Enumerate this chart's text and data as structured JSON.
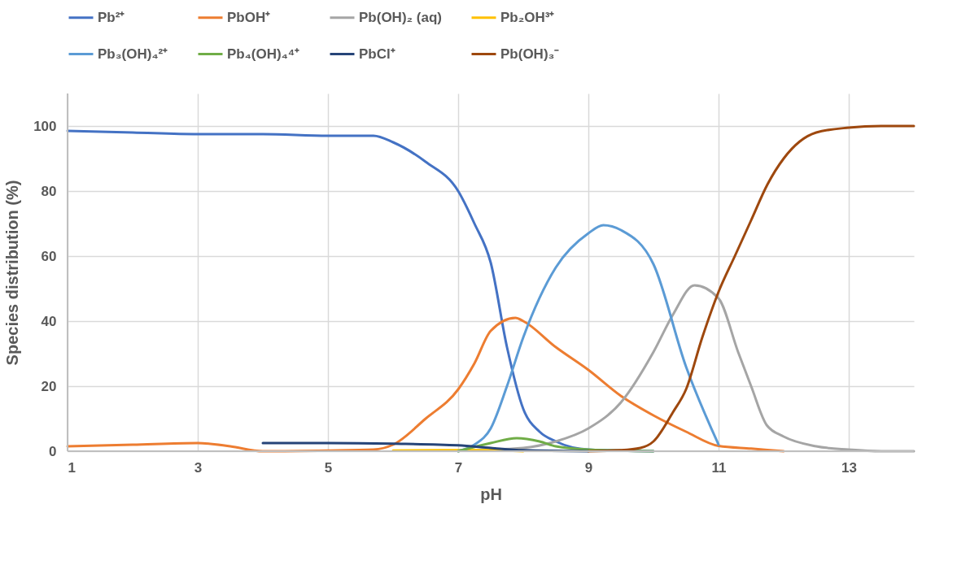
{
  "chart_data": {
    "type": "line",
    "xlabel": "pH",
    "ylabel": "Species distribution (%)",
    "xlim": [
      1,
      14
    ],
    "xticks": [
      1,
      3,
      5,
      7,
      9,
      11,
      13
    ],
    "ylim": [
      0,
      110
    ],
    "yticks": [
      0,
      20,
      40,
      60,
      80,
      100
    ],
    "grid": true,
    "legend": "top",
    "line_style": "solid",
    "marker": "none",
    "series": [
      {
        "name": "Pb²⁺",
        "color": "#4472c4",
        "x": [
          1,
          2,
          3,
          4,
          5,
          5.7,
          6,
          6.5,
          7,
          7.25,
          7.5,
          7.75,
          8,
          8.25,
          8.5,
          9,
          10
        ],
        "values": [
          98.5,
          98,
          97.5,
          97.5,
          97,
          97,
          95,
          89,
          80,
          70,
          58,
          32,
          13,
          6,
          3,
          0.5,
          0
        ]
      },
      {
        "name": "PbOH⁺",
        "color": "#ed7d31",
        "x": [
          1,
          2,
          3,
          3.5,
          4,
          5,
          5.7,
          6,
          6.5,
          7,
          7.25,
          7.5,
          7.88,
          8,
          8.5,
          9,
          9.5,
          10,
          10.5,
          11,
          11.5,
          12
        ],
        "values": [
          1.5,
          2,
          2.5,
          1.5,
          0,
          0.2,
          0.5,
          2,
          10,
          19,
          27,
          37,
          41,
          40,
          32,
          25,
          17,
          11,
          6,
          1.6,
          0.8,
          0
        ]
      },
      {
        "name": "Pb(OH)₂ (aq)",
        "color": "#a5a5a5",
        "x": [
          7.5,
          8,
          8.5,
          9,
          9.5,
          10,
          10.3,
          10.63,
          11,
          11.3,
          11.5,
          11.74,
          12,
          12.5,
          13,
          13.5,
          14
        ],
        "values": [
          0.5,
          1,
          3,
          7,
          15,
          30.5,
          42,
          51,
          47,
          30.5,
          20,
          8,
          4.5,
          1.5,
          0.5,
          0,
          0
        ]
      },
      {
        "name": "Pb₂OH³⁺",
        "color": "#ffc000",
        "x": [
          6,
          7,
          7.5,
          8
        ],
        "values": [
          0.2,
          0.3,
          0.3,
          0
        ]
      },
      {
        "name": "Pb₃(OH)₄²⁺",
        "color": "#5b9bd5",
        "x": [
          7,
          7.25,
          7.5,
          7.75,
          8,
          8.5,
          9,
          9.23,
          9.5,
          10,
          10.5,
          11
        ],
        "values": [
          0,
          2,
          7,
          20,
          35,
          56.5,
          67,
          69.5,
          68,
          57.5,
          26,
          2
        ]
      },
      {
        "name": "Pb₄(OH)₄⁴⁺",
        "color": "#70ad47",
        "x": [
          7,
          7.5,
          7.9,
          8.25,
          8.5,
          9,
          10
        ],
        "values": [
          0,
          2.5,
          4,
          3,
          1.5,
          0.5,
          0
        ]
      },
      {
        "name": "PbCl⁺",
        "color": "#264478",
        "x": [
          4,
          5,
          6,
          7,
          7.5,
          8,
          9
        ],
        "values": [
          2.5,
          2.5,
          2.3,
          1.8,
          1,
          0.3,
          0
        ]
      },
      {
        "name": "Pb(OH)₃⁻",
        "color": "#9e480e",
        "x": [
          9,
          9.5,
          9.8,
          10,
          10.3,
          10.5,
          10.75,
          11,
          11.25,
          11.5,
          11.75,
          12,
          12.5,
          13,
          13.5,
          14
        ],
        "values": [
          0,
          0.3,
          1,
          3,
          12,
          19,
          35,
          49,
          60,
          71,
          82,
          90,
          98,
          99.5,
          100,
          100
        ]
      }
    ]
  }
}
